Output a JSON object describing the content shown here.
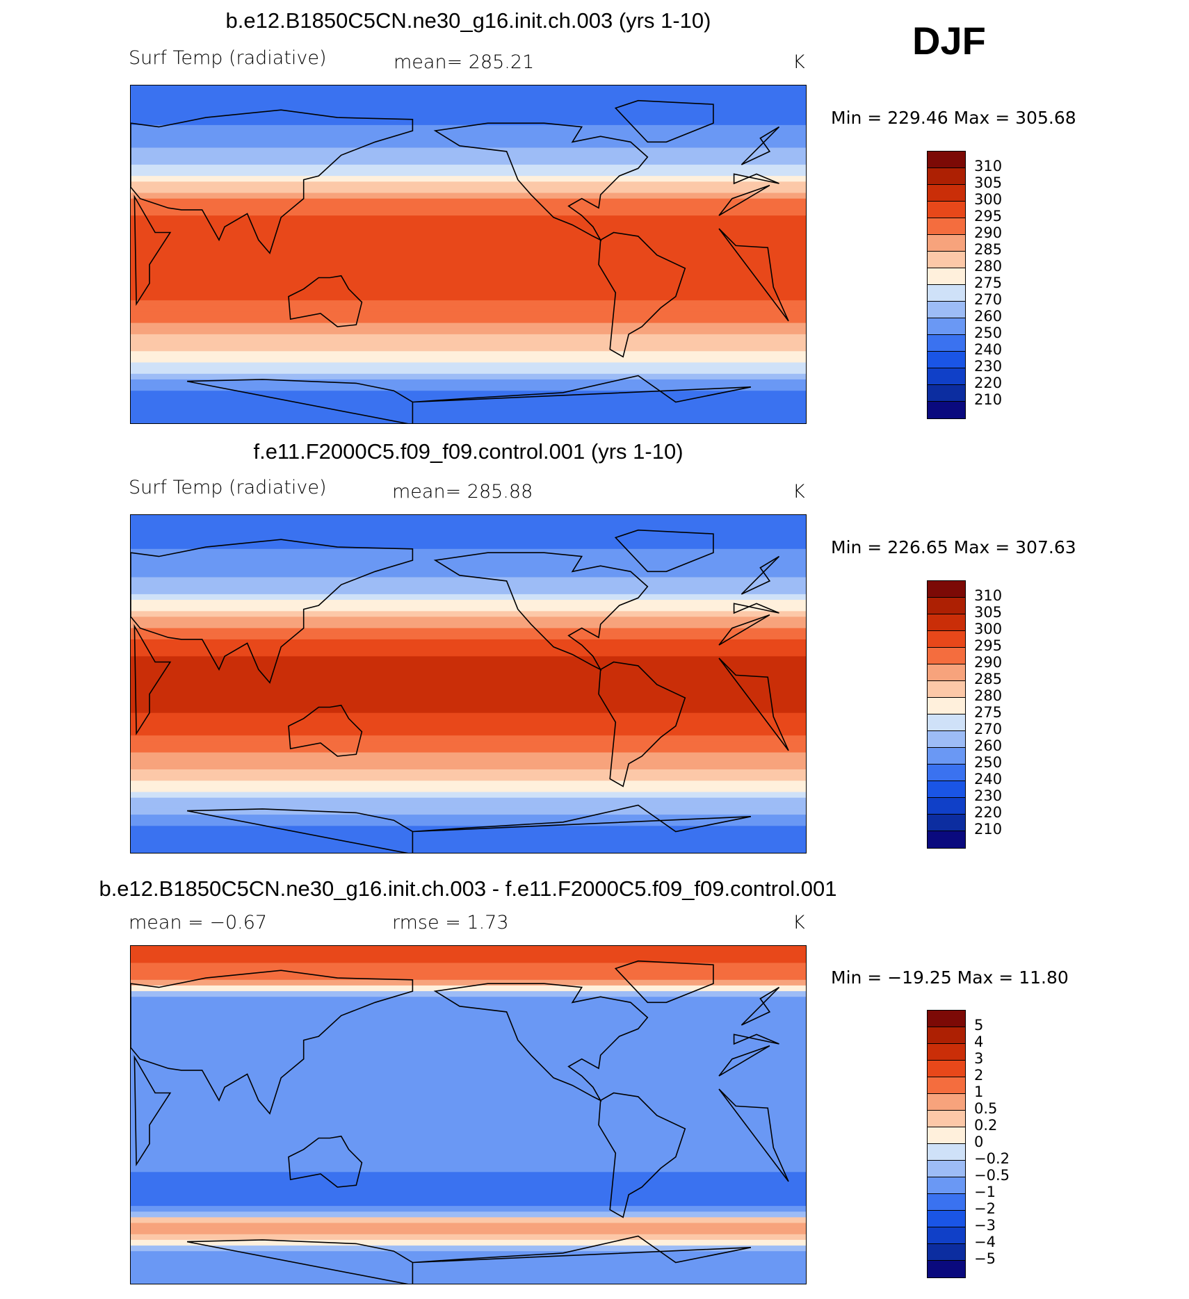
{
  "season": "DJF",
  "colors": {
    "abs": [
      "#0a0a7e",
      "#0c2da0",
      "#1040c8",
      "#1a55e6",
      "#3a72f0",
      "#6a98f4",
      "#9dbcf6",
      "#cfe1f8",
      "#fff0dc",
      "#fcc8a8",
      "#f7a37c",
      "#f46d3e",
      "#e8481a",
      "#ca2e08",
      "#ad2003",
      "#7c0a06"
    ],
    "diff": [
      "#0a0a7e",
      "#0c2da0",
      "#1040c8",
      "#1a55e6",
      "#3a72f0",
      "#6a98f4",
      "#9dbcf6",
      "#cfe1f8",
      "#fff0dc",
      "#fcc8a8",
      "#f7a37c",
      "#f46d3e",
      "#e8481a",
      "#ca2e08",
      "#ad2003",
      "#7c0a06"
    ]
  },
  "panels": [
    {
      "title": "b.e12.B1850C5CN.ne30_g16.init.ch.003 (yrs 1-10)",
      "left_label": "Surf Temp (radiative)",
      "center_label": "mean= 285.21",
      "units": "K",
      "minmax": "Min = 229.46 Max = 305.68",
      "levels": [
        "310",
        "305",
        "300",
        "295",
        "290",
        "285",
        "280",
        "275",
        "270",
        "260",
        "250",
        "240",
        "230",
        "220",
        "210"
      ],
      "kind": "abs"
    },
    {
      "title": "f.e11.F2000C5.f09_f09.control.001 (yrs 1-10)",
      "left_label": "Surf Temp (radiative)",
      "center_label": "mean= 285.88",
      "units": "K",
      "minmax": "Min = 226.65 Max = 307.63",
      "levels": [
        "310",
        "305",
        "300",
        "295",
        "290",
        "285",
        "280",
        "275",
        "270",
        "260",
        "250",
        "240",
        "230",
        "220",
        "210"
      ],
      "kind": "abs"
    },
    {
      "title": "b.e12.B1850C5CN.ne30_g16.init.ch.003 - f.e11.F2000C5.f09_f09.control.001",
      "left_label": "mean =   −0.67",
      "center_label": "rmse =    1.73",
      "units": "K",
      "minmax": "Min = −19.25 Max =   11.80",
      "levels": [
        "5",
        "4",
        "3",
        "2",
        "1",
        "0.5",
        "0.2",
        "0",
        "−0.2",
        "−0.5",
        "−1",
        "−2",
        "−3",
        "−4",
        "−5"
      ],
      "kind": "diff"
    }
  ],
  "chart_data": [
    {
      "type": "heatmap",
      "title": "b.e12.B1850C5CN.ne30_g16.init.ch.003 (yrs 1-10)",
      "variable": "Surf Temp (radiative)",
      "units": "K",
      "mean": 285.21,
      "min": 229.46,
      "max": 305.68,
      "contour_levels": [
        210,
        220,
        230,
        240,
        250,
        260,
        270,
        275,
        280,
        285,
        290,
        295,
        300,
        305,
        310
      ],
      "latitude_band_values": {
        "lat": [
          80,
          60,
          45,
          30,
          15,
          0,
          -15,
          -30,
          -45,
          -60,
          -75
        ],
        "value": [
          245,
          255,
          272,
          290,
          299,
          300,
          299,
          293,
          283,
          273,
          245
        ]
      }
    },
    {
      "type": "heatmap",
      "title": "f.e11.F2000C5.f09_f09.control.001 (yrs 1-10)",
      "variable": "Surf Temp (radiative)",
      "units": "K",
      "mean": 285.88,
      "min": 226.65,
      "max": 307.63,
      "contour_levels": [
        210,
        220,
        230,
        240,
        250,
        260,
        270,
        275,
        280,
        285,
        290,
        295,
        300,
        305,
        310
      ],
      "latitude_band_values": {
        "lat": [
          80,
          60,
          45,
          30,
          15,
          0,
          -15,
          -30,
          -45,
          -60,
          -75
        ],
        "value": [
          245,
          258,
          274,
          291,
          300,
          301,
          300,
          294,
          284,
          272,
          248
        ]
      }
    },
    {
      "type": "heatmap",
      "title": "b.e12.B1850C5CN.ne30_g16.init.ch.003 - f.e11.F2000C5.f09_f09.control.001",
      "units": "K",
      "mean": -0.67,
      "rmse": 1.73,
      "min": -19.25,
      "max": 11.8,
      "contour_levels": [
        -5,
        -4,
        -3,
        -2,
        -1,
        -0.5,
        -0.2,
        0,
        0.2,
        0.5,
        1,
        2,
        3,
        4,
        5
      ],
      "latitude_band_values": {
        "lat": [
          80,
          60,
          45,
          30,
          15,
          0,
          -15,
          -30,
          -45,
          -60,
          -75
        ],
        "value": [
          2,
          -1,
          -1,
          -0.5,
          -1,
          -0.5,
          -1,
          -1,
          -1.5,
          1,
          -1
        ]
      }
    }
  ]
}
